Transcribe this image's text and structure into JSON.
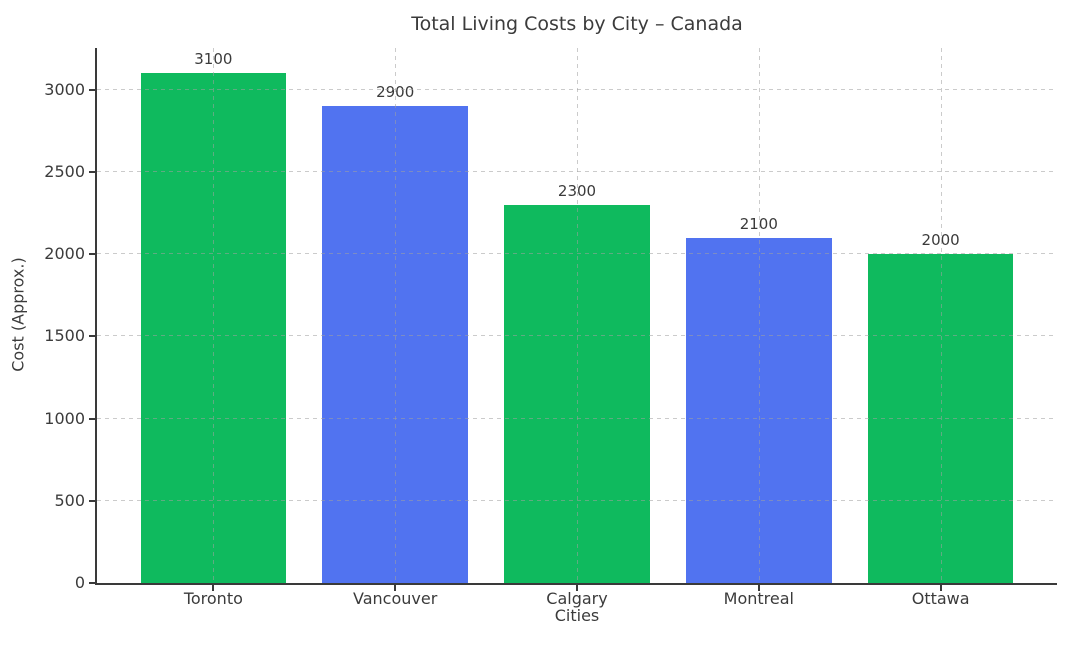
{
  "window": {
    "background_color": "#ffffff"
  },
  "chart_data": {
    "type": "bar",
    "title": "Total Living Costs by City – Canada",
    "xlabel": "Cities",
    "ylabel": "Cost (Approx.)",
    "categories": [
      "Toronto",
      "Vancouver",
      "Calgary",
      "Montreal",
      "Ottawa"
    ],
    "values": [
      3100,
      2900,
      2300,
      2100,
      2000
    ],
    "bar_value_labels": [
      "3100",
      "2900",
      "2300",
      "2100",
      "2000"
    ],
    "bar_colors": [
      "#0fba5e",
      "#5173f0",
      "#0fba5e",
      "#5173f0",
      "#0fba5e"
    ],
    "yticks": [
      0,
      500,
      1000,
      1500,
      2000,
      2500,
      3000
    ],
    "ytick_labels": [
      "0",
      "500",
      "1000",
      "1500",
      "2000",
      "2500",
      "3000"
    ],
    "ylim": [
      0,
      3255
    ],
    "x_margin_fraction": 0.1212,
    "bar_width_fraction": 0.1515,
    "grid": {
      "on": true,
      "style": "dashed",
      "axes": "both",
      "color": "#d9d9d9",
      "drawn_above_bars": true
    },
    "legend": null,
    "spines": {
      "left": true,
      "bottom": true,
      "top": false,
      "right": false,
      "color": "#3a3a3a"
    },
    "text_color": "#3b3b3b"
  }
}
